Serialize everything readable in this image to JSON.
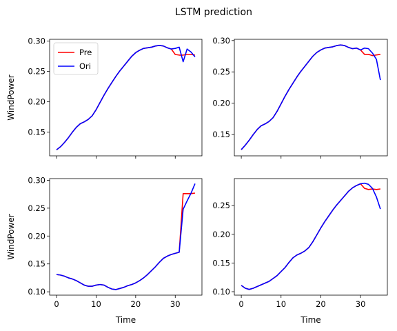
{
  "figure": {
    "suptitle": "LSTM prediction"
  },
  "chart_data": [
    {
      "type": "line",
      "panel": "top-left",
      "xlabel": "",
      "ylabel": "WindPower",
      "xlim": [
        -1.75,
        36.75
      ],
      "ylim": [
        0.111,
        0.303
      ],
      "xticks": [
        0,
        10,
        20,
        30
      ],
      "xtick_labels_visible": false,
      "yticks": [
        0.15,
        0.2,
        0.25,
        0.3
      ],
      "ytick_labels": [
        "0.15",
        "0.20",
        "0.25",
        "0.30"
      ],
      "legend": {
        "position": "upper-left",
        "entries": [
          "Pre",
          "Ori"
        ]
      },
      "series": [
        {
          "name": "Pre",
          "color": "#ff0000",
          "x": [
            0,
            1,
            2,
            3,
            4,
            5,
            6,
            7,
            8,
            9,
            10,
            11,
            12,
            13,
            14,
            15,
            16,
            17,
            18,
            19,
            20,
            21,
            22,
            23,
            24,
            25,
            26,
            27,
            28,
            29,
            30,
            31,
            32,
            33,
            34,
            35
          ],
          "y": [
            0.121,
            0.126,
            0.133,
            0.141,
            0.15,
            0.158,
            0.164,
            0.167,
            0.171,
            0.177,
            0.187,
            0.199,
            0.211,
            0.222,
            0.232,
            0.242,
            0.251,
            0.259,
            0.267,
            0.275,
            0.281,
            0.285,
            0.288,
            0.289,
            0.29,
            0.292,
            0.293,
            0.292,
            0.289,
            0.287,
            0.278,
            0.277,
            0.277,
            0.278,
            0.278,
            0.277
          ]
        },
        {
          "name": "Ori",
          "color": "#0000ff",
          "x": [
            0,
            1,
            2,
            3,
            4,
            5,
            6,
            7,
            8,
            9,
            10,
            11,
            12,
            13,
            14,
            15,
            16,
            17,
            18,
            19,
            20,
            21,
            22,
            23,
            24,
            25,
            26,
            27,
            28,
            29,
            30,
            31,
            32,
            33,
            34,
            35
          ],
          "y": [
            0.121,
            0.126,
            0.133,
            0.141,
            0.15,
            0.158,
            0.164,
            0.167,
            0.171,
            0.177,
            0.187,
            0.199,
            0.211,
            0.222,
            0.232,
            0.242,
            0.251,
            0.259,
            0.267,
            0.275,
            0.281,
            0.285,
            0.288,
            0.289,
            0.29,
            0.292,
            0.293,
            0.292,
            0.289,
            0.287,
            0.288,
            0.29,
            0.266,
            0.287,
            0.282,
            0.274
          ]
        }
      ]
    },
    {
      "type": "line",
      "panel": "top-right",
      "xlabel": "",
      "ylabel": "",
      "xlim": [
        -1.75,
        36.75
      ],
      "ylim": [
        0.116,
        0.302
      ],
      "xticks": [
        0,
        10,
        20,
        30
      ],
      "xtick_labels_visible": false,
      "yticks": [
        0.15,
        0.2,
        0.25,
        0.3
      ],
      "ytick_labels": [
        "0.15",
        "0.20",
        "0.25",
        "0.30"
      ],
      "series": [
        {
          "name": "Pre",
          "color": "#ff0000",
          "x": [
            0,
            1,
            2,
            3,
            4,
            5,
            6,
            7,
            8,
            9,
            10,
            11,
            12,
            13,
            14,
            15,
            16,
            17,
            18,
            19,
            20,
            21,
            22,
            23,
            24,
            25,
            26,
            27,
            28,
            29,
            30,
            31,
            32,
            33,
            34,
            35
          ],
          "y": [
            0.126,
            0.133,
            0.141,
            0.15,
            0.158,
            0.164,
            0.167,
            0.171,
            0.177,
            0.187,
            0.199,
            0.211,
            0.222,
            0.232,
            0.242,
            0.251,
            0.259,
            0.267,
            0.275,
            0.281,
            0.285,
            0.288,
            0.289,
            0.29,
            0.292,
            0.293,
            0.292,
            0.289,
            0.287,
            0.288,
            0.285,
            0.278,
            0.278,
            0.276,
            0.277,
            0.278
          ]
        },
        {
          "name": "Ori",
          "color": "#0000ff",
          "x": [
            0,
            1,
            2,
            3,
            4,
            5,
            6,
            7,
            8,
            9,
            10,
            11,
            12,
            13,
            14,
            15,
            16,
            17,
            18,
            19,
            20,
            21,
            22,
            23,
            24,
            25,
            26,
            27,
            28,
            29,
            30,
            31,
            32,
            33,
            34,
            35
          ],
          "y": [
            0.126,
            0.133,
            0.141,
            0.15,
            0.158,
            0.164,
            0.167,
            0.171,
            0.177,
            0.187,
            0.199,
            0.211,
            0.222,
            0.232,
            0.242,
            0.251,
            0.259,
            0.267,
            0.275,
            0.281,
            0.285,
            0.288,
            0.289,
            0.29,
            0.292,
            0.293,
            0.292,
            0.289,
            0.287,
            0.288,
            0.285,
            0.288,
            0.287,
            0.28,
            0.27,
            0.237
          ]
        }
      ]
    },
    {
      "type": "line",
      "panel": "bottom-left",
      "xlabel": "Time",
      "ylabel": "WindPower",
      "xlim": [
        -1.75,
        36.75
      ],
      "ylim": [
        0.094,
        0.303
      ],
      "xticks": [
        0,
        10,
        20,
        30
      ],
      "xtick_labels_visible": true,
      "xtick_labels": [
        "0",
        "10",
        "20",
        "30"
      ],
      "yticks": [
        0.1,
        0.15,
        0.2,
        0.25,
        0.3
      ],
      "ytick_labels": [
        "0.10",
        "0.15",
        "0.20",
        "0.25",
        "0.30"
      ],
      "series": [
        {
          "name": "Pre",
          "color": "#ff0000",
          "x": [
            0,
            1,
            2,
            3,
            4,
            5,
            6,
            7,
            8,
            9,
            10,
            11,
            12,
            13,
            14,
            15,
            16,
            17,
            18,
            19,
            20,
            21,
            22,
            23,
            24,
            25,
            26,
            27,
            28,
            29,
            30,
            31,
            32,
            33,
            34,
            35
          ],
          "y": [
            0.131,
            0.13,
            0.128,
            0.125,
            0.123,
            0.12,
            0.116,
            0.112,
            0.11,
            0.11,
            0.112,
            0.113,
            0.112,
            0.108,
            0.105,
            0.104,
            0.106,
            0.108,
            0.111,
            0.113,
            0.116,
            0.12,
            0.125,
            0.131,
            0.138,
            0.145,
            0.153,
            0.16,
            0.164,
            0.167,
            0.169,
            0.171,
            0.276,
            0.276,
            0.276,
            0.277
          ]
        },
        {
          "name": "Ori",
          "color": "#0000ff",
          "x": [
            0,
            1,
            2,
            3,
            4,
            5,
            6,
            7,
            8,
            9,
            10,
            11,
            12,
            13,
            14,
            15,
            16,
            17,
            18,
            19,
            20,
            21,
            22,
            23,
            24,
            25,
            26,
            27,
            28,
            29,
            30,
            31,
            32,
            33,
            34,
            35
          ],
          "y": [
            0.131,
            0.13,
            0.128,
            0.125,
            0.123,
            0.12,
            0.116,
            0.112,
            0.11,
            0.11,
            0.112,
            0.113,
            0.112,
            0.108,
            0.105,
            0.104,
            0.106,
            0.108,
            0.111,
            0.113,
            0.116,
            0.12,
            0.125,
            0.131,
            0.138,
            0.145,
            0.153,
            0.16,
            0.164,
            0.167,
            0.169,
            0.171,
            0.248,
            0.263,
            0.277,
            0.294
          ]
        }
      ]
    },
    {
      "type": "line",
      "panel": "bottom-right",
      "xlabel": "Time",
      "ylabel": "",
      "xlim": [
        -1.75,
        36.75
      ],
      "ylim": [
        0.094,
        0.297
      ],
      "xticks": [
        0,
        10,
        20,
        30
      ],
      "xtick_labels_visible": true,
      "xtick_labels": [
        "0",
        "10",
        "20",
        "30"
      ],
      "yticks": [
        0.1,
        0.15,
        0.2,
        0.25
      ],
      "ytick_labels": [
        "0.10",
        "0.15",
        "0.20",
        "0.25"
      ],
      "series": [
        {
          "name": "Pre",
          "color": "#ff0000",
          "x": [
            0,
            1,
            2,
            3,
            4,
            5,
            6,
            7,
            8,
            9,
            10,
            11,
            12,
            13,
            14,
            15,
            16,
            17,
            18,
            19,
            20,
            21,
            22,
            23,
            24,
            25,
            26,
            27,
            28,
            29,
            30,
            31,
            32,
            33,
            34,
            35
          ],
          "y": [
            0.111,
            0.106,
            0.104,
            0.106,
            0.109,
            0.112,
            0.115,
            0.118,
            0.123,
            0.128,
            0.135,
            0.142,
            0.151,
            0.159,
            0.164,
            0.167,
            0.171,
            0.177,
            0.187,
            0.199,
            0.211,
            0.222,
            0.232,
            0.242,
            0.251,
            0.259,
            0.267,
            0.275,
            0.281,
            0.285,
            0.288,
            0.28,
            0.278,
            0.279,
            0.278,
            0.279
          ]
        },
        {
          "name": "Ori",
          "color": "#0000ff",
          "x": [
            0,
            1,
            2,
            3,
            4,
            5,
            6,
            7,
            8,
            9,
            10,
            11,
            12,
            13,
            14,
            15,
            16,
            17,
            18,
            19,
            20,
            21,
            22,
            23,
            24,
            25,
            26,
            27,
            28,
            29,
            30,
            31,
            32,
            33,
            34,
            35
          ],
          "y": [
            0.111,
            0.106,
            0.104,
            0.106,
            0.109,
            0.112,
            0.115,
            0.118,
            0.123,
            0.128,
            0.135,
            0.142,
            0.151,
            0.159,
            0.164,
            0.167,
            0.171,
            0.177,
            0.187,
            0.199,
            0.211,
            0.222,
            0.232,
            0.242,
            0.251,
            0.259,
            0.267,
            0.275,
            0.281,
            0.285,
            0.288,
            0.289,
            0.287,
            0.28,
            0.265,
            0.244
          ]
        }
      ]
    }
  ]
}
